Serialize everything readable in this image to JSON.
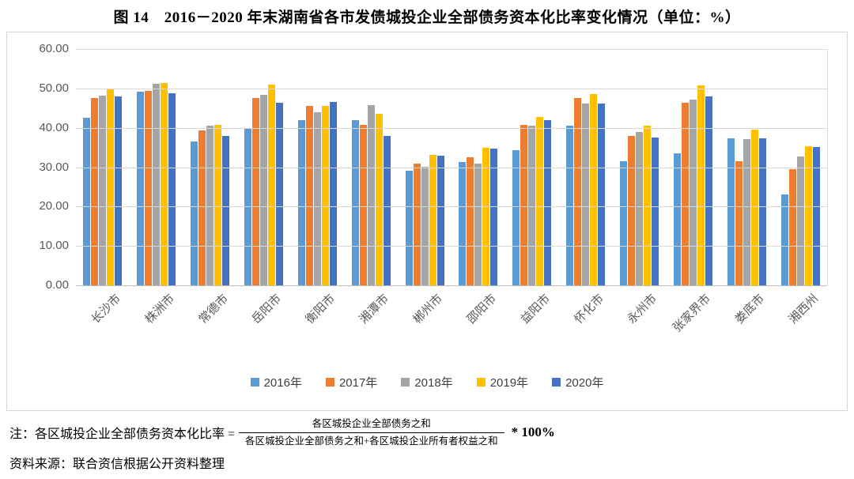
{
  "title": "图 14　2016－2020 年末湖南省各市发债城投企业全部债务资本化比率变化情况（单位：%）",
  "chart_data": {
    "type": "bar",
    "categories": [
      "长沙市",
      "株洲市",
      "常德市",
      "岳阳市",
      "衡阳市",
      "湘潭市",
      "郴州市",
      "邵阳市",
      "益阳市",
      "怀化市",
      "永州市",
      "张家界市",
      "娄底市",
      "湘西州"
    ],
    "series": [
      {
        "name": "2016年",
        "color": "#5B9BD5",
        "values": [
          42.6,
          49.2,
          36.6,
          40.0,
          42.0,
          41.9,
          29.2,
          31.3,
          34.4,
          40.5,
          31.6,
          33.5,
          37.3,
          23.1
        ]
      },
      {
        "name": "2017年",
        "color": "#ED7D31",
        "values": [
          47.6,
          49.4,
          39.4,
          47.5,
          45.5,
          40.8,
          31.0,
          32.5,
          40.7,
          47.6,
          37.9,
          46.4,
          31.5,
          29.6
        ]
      },
      {
        "name": "2018年",
        "color": "#A5A5A5",
        "values": [
          48.1,
          51.2,
          40.6,
          48.4,
          44.0,
          45.8,
          30.2,
          31.0,
          40.6,
          46.2,
          39.0,
          47.1,
          37.1,
          32.7
        ]
      },
      {
        "name": "2019年",
        "color": "#FFC000",
        "values": [
          49.9,
          51.4,
          40.7,
          50.9,
          45.5,
          43.6,
          33.2,
          34.9,
          42.7,
          48.6,
          40.5,
          50.8,
          39.5,
          35.4
        ]
      },
      {
        "name": "2020年",
        "color": "#4472C4",
        "values": [
          48.0,
          48.7,
          38.0,
          46.3,
          46.6,
          38.0,
          33.0,
          34.8,
          42.0,
          46.2,
          37.6,
          47.9,
          37.3,
          35.2
        ]
      }
    ],
    "title": "图 14　2016－2020 年末湖南省各市发债城投企业全部债务资本化比率变化情况（单位：%）",
    "xlabel": "",
    "ylabel": "",
    "ylim": [
      0,
      60
    ],
    "yticks": [
      "60.00",
      "50.00",
      "40.00",
      "30.00",
      "20.00",
      "10.00",
      "0.00"
    ],
    "grid": true,
    "legend_position": "bottom"
  },
  "note": {
    "prefix": "注：各区城投企业全部债务资本化比率 =",
    "numerator": "各区城投企业全部债务之和",
    "denominator": "各区城投企业全部债务之和+各区城投企业所有者权益之和",
    "suffix": "* 100%"
  },
  "source": "资料来源：联合资信根据公开资料整理"
}
